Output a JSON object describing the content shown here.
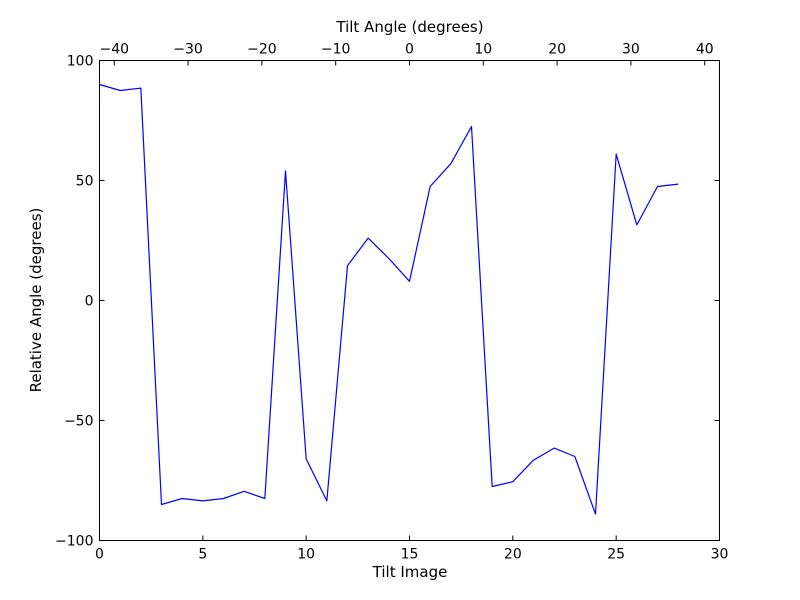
{
  "chart_data": {
    "type": "line",
    "title": "",
    "xlabel": "Tilt Image",
    "ylabel": "Relative Angle (degrees)",
    "x2label": "Tilt Angle (degrees)",
    "xlim": [
      0,
      30
    ],
    "ylim": [
      -100,
      100
    ],
    "x2lim": [
      -42,
      42
    ],
    "xticks": [
      0,
      5,
      10,
      15,
      20,
      25,
      30
    ],
    "yticks": [
      -100,
      -50,
      0,
      50,
      100
    ],
    "x2ticks": [
      -40,
      -30,
      -20,
      -10,
      0,
      10,
      20,
      30,
      40
    ],
    "xtick_labels": [
      "0",
      "5",
      "10",
      "15",
      "20",
      "25",
      "30"
    ],
    "ytick_labels": [
      "−100",
      "−50",
      "0",
      "50",
      "100"
    ],
    "x2tick_labels": [
      "−40",
      "−30",
      "−20",
      "−10",
      "0",
      "10",
      "20",
      "30",
      "40"
    ],
    "grid": false,
    "series": [
      {
        "color": "#0000ff",
        "x": [
          0,
          1,
          2,
          3,
          4,
          5,
          6,
          7,
          8,
          9,
          10,
          11,
          12,
          13,
          14,
          15,
          16,
          17,
          18,
          19,
          20,
          21,
          22,
          23,
          24,
          25,
          26,
          27,
          28
        ],
        "y": [
          90,
          87.5,
          88.5,
          -85,
          -82.5,
          -83.5,
          -82.5,
          -79.5,
          -82.5,
          54,
          -66,
          -83.5,
          14.5,
          26,
          17.5,
          8,
          47.5,
          57,
          72.5,
          -77.5,
          -75.5,
          -66.5,
          -61.5,
          -65,
          -89,
          61,
          31.5,
          47.5,
          48.5
        ]
      }
    ]
  }
}
